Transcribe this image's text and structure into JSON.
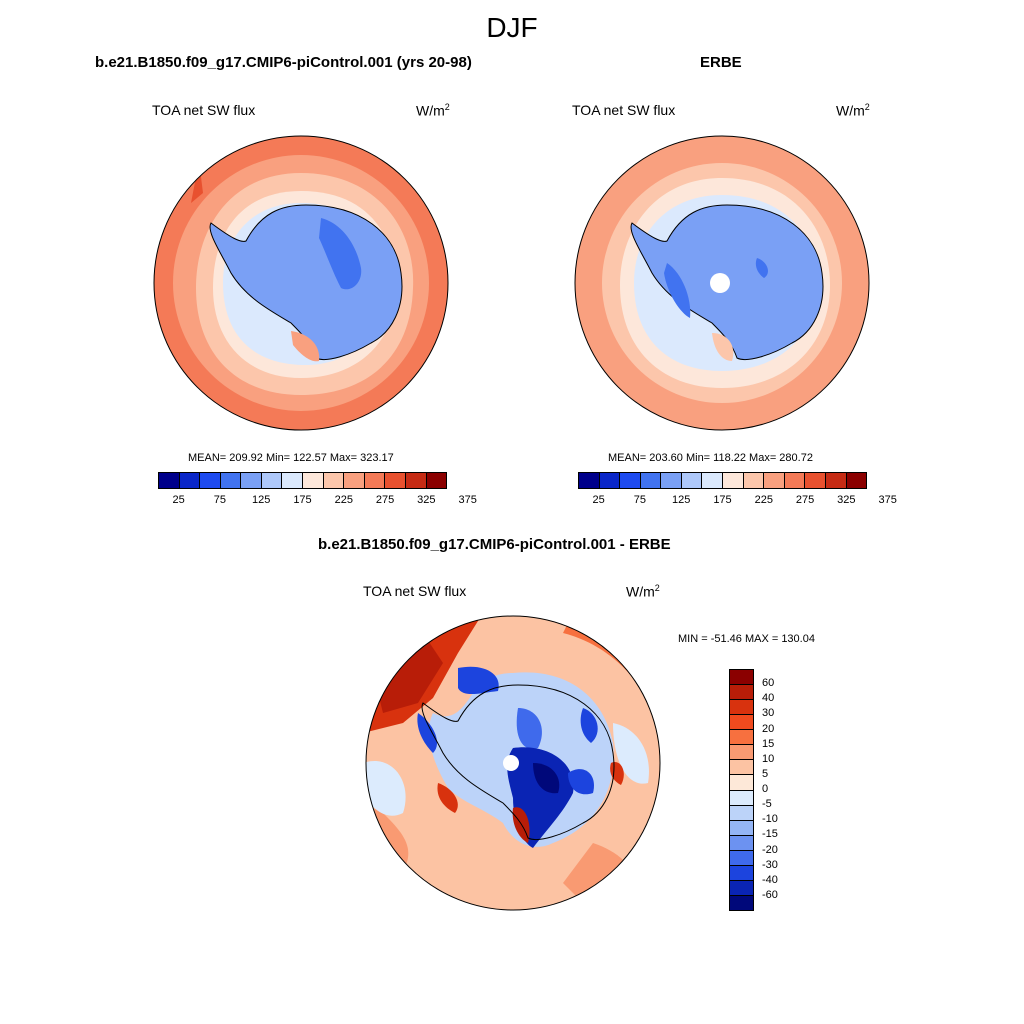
{
  "figure": {
    "season": "DJF",
    "units_base": "W/m",
    "units_exp": "2"
  },
  "panels": {
    "model": {
      "title": "b.e21.B1850.f09_g17.CMIP6-piControl.001 (yrs 20-98)",
      "variable": "TOA net SW flux",
      "stats": "MEAN= 209.92  Min= 122.57  Max= 323.17"
    },
    "obs": {
      "title": "ERBE",
      "variable": "TOA net SW flux",
      "stats": "MEAN= 203.60  Min= 118.22  Max= 280.72"
    },
    "diff": {
      "title": "b.e21.B1850.f09_g17.CMIP6-piControl.001 - ERBE",
      "variable": "TOA net SW flux",
      "stats": "MIN = -51.46 MAX = 130.04"
    }
  },
  "abs_colorbar": {
    "ticks": [
      "25",
      "75",
      "125",
      "175",
      "225",
      "275",
      "325",
      "375"
    ],
    "colors": [
      "#00008b",
      "#0a26c8",
      "#1e4bf0",
      "#4173f0",
      "#7aa0f5",
      "#aec8fa",
      "#dbe9fd",
      "#fde7da",
      "#fcc6ab",
      "#f9a07f",
      "#f47a57",
      "#e8512f",
      "#c62b14",
      "#8b0000"
    ]
  },
  "diff_colorbar": {
    "ticks": [
      "60",
      "40",
      "30",
      "20",
      "15",
      "10",
      "5",
      "0",
      "-5",
      "-10",
      "-15",
      "-20",
      "-30",
      "-40",
      "-60"
    ],
    "colors": [
      "#8b0000",
      "#b81d08",
      "#d8320e",
      "#f04a1e",
      "#f7703f",
      "#f99a72",
      "#fcc3a3",
      "#fde8d8",
      "#dcebfd",
      "#bcd3f9",
      "#94b5f5",
      "#6c92f1",
      "#3f6aec",
      "#1c44de",
      "#0a24b4",
      "#00087a"
    ]
  }
}
